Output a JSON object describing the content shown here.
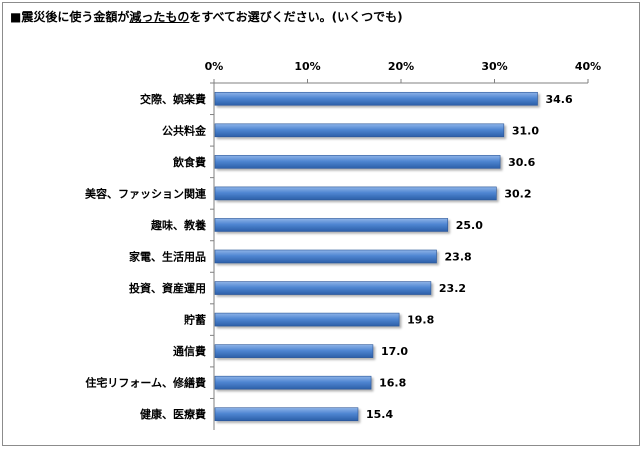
{
  "title": {
    "prefix": "■震災後に使う金額が",
    "emphasis": "減ったもの",
    "suffix": "をすべてお選びください。(いくつでも)"
  },
  "chart_data": {
    "type": "bar",
    "orientation": "horizontal",
    "title": "■震災後に使う金額が減ったものをすべてお選びください。(いくつでも)",
    "xlabel": "",
    "ylabel": "",
    "xlim": [
      0,
      40
    ],
    "ticks": [
      {
        "value": 0,
        "label": "0%"
      },
      {
        "value": 10,
        "label": "10%"
      },
      {
        "value": 20,
        "label": "20%"
      },
      {
        "value": 30,
        "label": "30%"
      },
      {
        "value": 40,
        "label": "40%"
      }
    ],
    "categories": [
      "交際、娯楽費",
      "公共料金",
      "飲食費",
      "美容、ファッション関連",
      "趣味、教養",
      "家電、生活用品",
      "投資、資産運用",
      "貯蓄",
      "通信費",
      "住宅リフォーム、修繕費",
      "健康、医療費"
    ],
    "values": [
      34.6,
      31.0,
      30.6,
      30.2,
      25.0,
      23.8,
      23.2,
      19.8,
      17.0,
      16.8,
      15.4
    ],
    "value_labels": [
      "34.6",
      "31.0",
      "30.6",
      "30.2",
      "25.0",
      "23.8",
      "23.2",
      "19.8",
      "17.0",
      "16.8",
      "15.4"
    ],
    "grid": false,
    "legend": "none",
    "bar_color": "#3f78c8"
  }
}
